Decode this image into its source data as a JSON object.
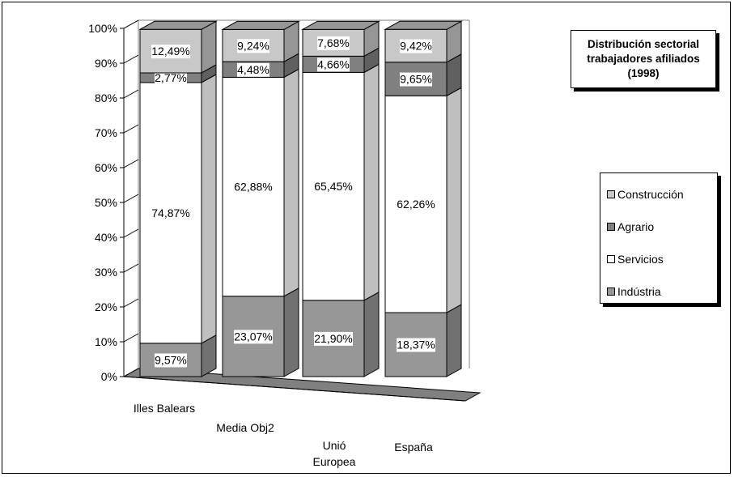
{
  "chart_data": {
    "type": "bar",
    "stacked": true,
    "three_d": true,
    "title": "Distribución sectorial\ntrabajadores afiliados\n(1998)",
    "categories": [
      "Illes Balears",
      "Media Obj2",
      "Unió\nEuropea",
      "España"
    ],
    "y_ticks": [
      "0%",
      "10%",
      "20%",
      "30%",
      "40%",
      "50%",
      "60%",
      "70%",
      "80%",
      "90%",
      "100%"
    ],
    "ylim": [
      0,
      100
    ],
    "legend_position": "right",
    "series": [
      {
        "name": "Indústria",
        "values": [
          9.57,
          23.07,
          21.9,
          18.37
        ],
        "labels": [
          "9,57%",
          "23,07%",
          "21,90%",
          "18,37%"
        ],
        "color": "#979797"
      },
      {
        "name": "Servicios",
        "values": [
          74.87,
          62.88,
          65.45,
          62.26
        ],
        "labels": [
          "74,87%",
          "62,88%",
          "65,45%",
          "62,26%"
        ],
        "color": "#ffffff"
      },
      {
        "name": "Agrario",
        "values": [
          2.77,
          4.48,
          4.66,
          9.65
        ],
        "labels": [
          "2,77%",
          "4,48%",
          "4,66%",
          "9,65%"
        ],
        "color": "#808080"
      },
      {
        "name": "Construcción",
        "values": [
          12.49,
          9.24,
          7.68,
          9.42
        ],
        "labels": [
          "12,49%",
          "9,24%",
          "7,68%",
          "9,42%"
        ],
        "color": "#c8c8c8"
      }
    ],
    "legend_order": [
      "Construcción",
      "Agrario",
      "Servicios",
      "Indústria"
    ]
  }
}
